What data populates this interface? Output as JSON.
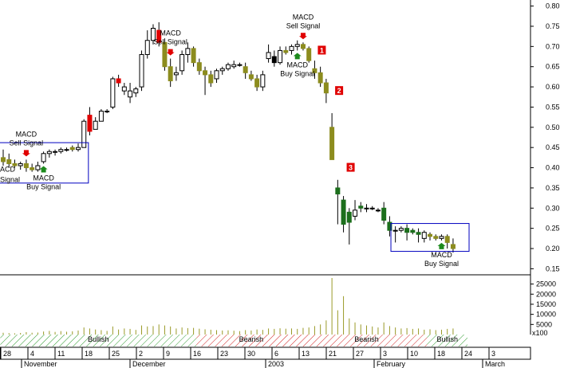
{
  "chart_data": {
    "type": "candlestick",
    "price_axis": {
      "range": [
        0.135,
        0.815
      ],
      "ticks": [
        "0.80",
        "0.75",
        "0.70",
        "0.65",
        "0.60",
        "0.55",
        "0.50",
        "0.45",
        "0.40",
        "0.35",
        "0.30",
        "0.25",
        "0.20",
        "0.15"
      ]
    },
    "volume_axis": {
      "range": [
        0,
        28000
      ],
      "ticks": [
        "25000",
        "20000",
        "15000",
        "10000",
        "5000"
      ],
      "extra_label": "x100"
    },
    "date_ticks": [
      "28",
      "4",
      "11",
      "18",
      "25",
      "2",
      "9",
      "16",
      "23",
      "30",
      "6",
      "13",
      "21",
      "27",
      "3",
      "10",
      "18",
      "24",
      "3"
    ],
    "month_labels": [
      "November",
      "December",
      "2003",
      "February",
      "March"
    ],
    "candles": [
      {
        "o": 0.425,
        "h": 0.445,
        "l": 0.405,
        "c": 0.415,
        "v": 900
      },
      {
        "o": 0.42,
        "h": 0.435,
        "l": 0.4,
        "c": 0.41,
        "v": 700
      },
      {
        "o": 0.41,
        "h": 0.42,
        "l": 0.4,
        "c": 0.405,
        "v": 600
      },
      {
        "o": 0.405,
        "h": 0.415,
        "l": 0.395,
        "c": 0.41,
        "v": 800
      },
      {
        "o": 0.41,
        "h": 0.42,
        "l": 0.39,
        "c": 0.4,
        "v": 1200
      },
      {
        "o": 0.4,
        "h": 0.41,
        "l": 0.39,
        "c": 0.395,
        "v": 900
      },
      {
        "o": 0.395,
        "h": 0.415,
        "l": 0.39,
        "c": 0.405,
        "v": 1000
      },
      {
        "o": 0.415,
        "h": 0.44,
        "l": 0.41,
        "c": 0.435,
        "v": 1500
      },
      {
        "o": 0.435,
        "h": 0.445,
        "l": 0.425,
        "c": 0.44,
        "v": 1800
      },
      {
        "o": 0.44,
        "h": 0.445,
        "l": 0.43,
        "c": 0.44,
        "v": 1300
      },
      {
        "o": 0.44,
        "h": 0.45,
        "l": 0.435,
        "c": 0.445,
        "v": 1700
      },
      {
        "o": 0.445,
        "h": 0.45,
        "l": 0.44,
        "c": 0.445,
        "v": 1400
      },
      {
        "o": 0.45,
        "h": 0.455,
        "l": 0.44,
        "c": 0.445,
        "v": 1600
      },
      {
        "o": 0.445,
        "h": 0.46,
        "l": 0.44,
        "c": 0.45,
        "v": 2000
      },
      {
        "o": 0.45,
        "h": 0.52,
        "l": 0.45,
        "c": 0.515,
        "v": 3500
      },
      {
        "o": 0.53,
        "h": 0.55,
        "l": 0.48,
        "c": 0.49,
        "v": 3000
      },
      {
        "o": 0.495,
        "h": 0.525,
        "l": 0.495,
        "c": 0.515,
        "v": 2500
      },
      {
        "o": 0.515,
        "h": 0.545,
        "l": 0.515,
        "c": 0.54,
        "v": 2200
      },
      {
        "o": 0.54,
        "h": 0.545,
        "l": 0.535,
        "c": 0.54,
        "v": 1800
      },
      {
        "o": 0.55,
        "h": 0.625,
        "l": 0.545,
        "c": 0.62,
        "v": 4000
      },
      {
        "o": 0.62,
        "h": 0.63,
        "l": 0.6,
        "c": 0.61,
        "v": 2500
      },
      {
        "o": 0.59,
        "h": 0.61,
        "l": 0.58,
        "c": 0.6,
        "v": 3000
      },
      {
        "o": 0.575,
        "h": 0.61,
        "l": 0.56,
        "c": 0.59,
        "v": 2800
      },
      {
        "o": 0.585,
        "h": 0.6,
        "l": 0.575,
        "c": 0.595,
        "v": 2300
      },
      {
        "o": 0.6,
        "h": 0.69,
        "l": 0.59,
        "c": 0.68,
        "v": 4500
      },
      {
        "o": 0.68,
        "h": 0.74,
        "l": 0.67,
        "c": 0.715,
        "v": 4000
      },
      {
        "o": 0.715,
        "h": 0.755,
        "l": 0.705,
        "c": 0.745,
        "v": 4200
      },
      {
        "o": 0.74,
        "h": 0.76,
        "l": 0.7,
        "c": 0.71,
        "v": 5000
      },
      {
        "o": 0.71,
        "h": 0.72,
        "l": 0.64,
        "c": 0.65,
        "v": 4500
      },
      {
        "o": 0.65,
        "h": 0.67,
        "l": 0.6,
        "c": 0.615,
        "v": 4000
      },
      {
        "o": 0.63,
        "h": 0.65,
        "l": 0.615,
        "c": 0.635,
        "v": 3000
      },
      {
        "o": 0.64,
        "h": 0.69,
        "l": 0.63,
        "c": 0.68,
        "v": 3500
      },
      {
        "o": 0.68,
        "h": 0.71,
        "l": 0.66,
        "c": 0.695,
        "v": 3200
      },
      {
        "o": 0.695,
        "h": 0.7,
        "l": 0.65,
        "c": 0.66,
        "v": 3300
      },
      {
        "o": 0.66,
        "h": 0.67,
        "l": 0.63,
        "c": 0.64,
        "v": 2900
      },
      {
        "o": 0.64,
        "h": 0.65,
        "l": 0.58,
        "c": 0.63,
        "v": 2600
      },
      {
        "o": 0.63,
        "h": 0.64,
        "l": 0.6,
        "c": 0.61,
        "v": 2400
      },
      {
        "o": 0.62,
        "h": 0.645,
        "l": 0.61,
        "c": 0.64,
        "v": 2200
      },
      {
        "o": 0.64,
        "h": 0.65,
        "l": 0.63,
        "c": 0.645,
        "v": 2000
      },
      {
        "o": 0.645,
        "h": 0.66,
        "l": 0.64,
        "c": 0.655,
        "v": 2100
      },
      {
        "o": 0.65,
        "h": 0.665,
        "l": 0.645,
        "c": 0.655,
        "v": 1900
      },
      {
        "o": 0.655,
        "h": 0.66,
        "l": 0.65,
        "c": 0.655,
        "v": 1700
      },
      {
        "o": 0.65,
        "h": 0.66,
        "l": 0.62,
        "c": 0.635,
        "v": 2200
      },
      {
        "o": 0.63,
        "h": 0.64,
        "l": 0.615,
        "c": 0.62,
        "v": 2000
      },
      {
        "o": 0.62,
        "h": 0.63,
        "l": 0.59,
        "c": 0.6,
        "v": 2500
      },
      {
        "o": 0.6,
        "h": 0.64,
        "l": 0.59,
        "c": 0.63,
        "v": 2300
      },
      {
        "o": 0.67,
        "h": 0.705,
        "l": 0.66,
        "c": 0.685,
        "v": 3000
      },
      {
        "o": 0.675,
        "h": 0.69,
        "l": 0.65,
        "c": 0.66,
        "v": 2800
      },
      {
        "o": 0.66,
        "h": 0.7,
        "l": 0.655,
        "c": 0.69,
        "v": 3100
      },
      {
        "o": 0.69,
        "h": 0.7,
        "l": 0.68,
        "c": 0.685,
        "v": 2900
      },
      {
        "o": 0.69,
        "h": 0.705,
        "l": 0.68,
        "c": 0.7,
        "v": 3000
      },
      {
        "o": 0.7,
        "h": 0.715,
        "l": 0.69,
        "c": 0.705,
        "v": 2800
      },
      {
        "o": 0.705,
        "h": 0.71,
        "l": 0.69,
        "c": 0.695,
        "v": 3300
      },
      {
        "o": 0.695,
        "h": 0.7,
        "l": 0.66,
        "c": 0.665,
        "v": 3500
      },
      {
        "o": 0.645,
        "h": 0.665,
        "l": 0.62,
        "c": 0.635,
        "v": 4200
      },
      {
        "o": 0.635,
        "h": 0.65,
        "l": 0.6,
        "c": 0.61,
        "v": 5000
      },
      {
        "o": 0.61,
        "h": 0.62,
        "l": 0.56,
        "c": 0.585,
        "v": 7000
      },
      {
        "o": 0.5,
        "h": 0.535,
        "l": 0.42,
        "c": 0.42,
        "v": 28000
      },
      {
        "o": 0.35,
        "h": 0.37,
        "l": 0.26,
        "c": 0.335,
        "v": 12000
      },
      {
        "o": 0.32,
        "h": 0.33,
        "l": 0.24,
        "c": 0.26,
        "v": 19000
      },
      {
        "o": 0.29,
        "h": 0.3,
        "l": 0.21,
        "c": 0.265,
        "v": 8000
      },
      {
        "o": 0.28,
        "h": 0.32,
        "l": 0.27,
        "c": 0.295,
        "v": 6000
      },
      {
        "o": 0.305,
        "h": 0.315,
        "l": 0.29,
        "c": 0.3,
        "v": 5000
      },
      {
        "o": 0.3,
        "h": 0.31,
        "l": 0.29,
        "c": 0.3,
        "v": 4500
      },
      {
        "o": 0.3,
        "h": 0.305,
        "l": 0.295,
        "c": 0.3,
        "v": 4000
      },
      {
        "o": 0.295,
        "h": 0.3,
        "l": 0.29,
        "c": 0.295,
        "v": 3500
      },
      {
        "o": 0.3,
        "h": 0.315,
        "l": 0.26,
        "c": 0.27,
        "v": 6000
      },
      {
        "o": 0.265,
        "h": 0.28,
        "l": 0.23,
        "c": 0.245,
        "v": 4200
      },
      {
        "o": 0.245,
        "h": 0.255,
        "l": 0.215,
        "c": 0.245,
        "v": 3500
      },
      {
        "o": 0.245,
        "h": 0.255,
        "l": 0.24,
        "c": 0.25,
        "v": 3000
      },
      {
        "o": 0.25,
        "h": 0.26,
        "l": 0.22,
        "c": 0.24,
        "v": 3200
      },
      {
        "o": 0.245,
        "h": 0.25,
        "l": 0.235,
        "c": 0.24,
        "v": 2800
      },
      {
        "o": 0.24,
        "h": 0.25,
        "l": 0.215,
        "c": 0.235,
        "v": 3000
      },
      {
        "o": 0.225,
        "h": 0.245,
        "l": 0.215,
        "c": 0.24,
        "v": 2400
      },
      {
        "o": 0.235,
        "h": 0.24,
        "l": 0.22,
        "c": 0.23,
        "v": 2600
      },
      {
        "o": 0.23,
        "h": 0.235,
        "l": 0.22,
        "c": 0.225,
        "v": 2200
      },
      {
        "o": 0.225,
        "h": 0.235,
        "l": 0.22,
        "c": 0.23,
        "v": 2400
      },
      {
        "o": 0.23,
        "h": 0.235,
        "l": 0.2,
        "c": 0.215,
        "v": 2800
      },
      {
        "o": 0.21,
        "h": 0.225,
        "l": 0.19,
        "c": 0.2,
        "v": 3000
      }
    ],
    "annotations": [
      {
        "lines": [
          "MACD",
          "Sell Signal"
        ],
        "candle": 4,
        "place": "above",
        "arrow": "down"
      },
      {
        "lines": [
          "MACD",
          "Sell Signal"
        ],
        "candle": 29,
        "place": "above",
        "arrow": "down"
      },
      {
        "lines": [
          "MACD",
          "Sell Signal"
        ],
        "candle": 52,
        "place": "above",
        "arrow": "down"
      },
      {
        "lines": [
          "MACD",
          "Buy Signal"
        ],
        "candle": 7,
        "place": "below",
        "arrow": "up"
      },
      {
        "lines": [
          "MACD",
          "Buy Signal"
        ],
        "candle": 51,
        "place": "below",
        "arrow": "up"
      },
      {
        "lines": [
          "MACD",
          "Buy Signal"
        ],
        "candle": 76,
        "place": "below",
        "arrow": "up"
      }
    ],
    "cut_labels": [
      {
        "text": "ACD",
        "y": 0.39
      },
      {
        "text": "Signal",
        "y": 0.365
      }
    ],
    "numbered_markers": [
      {
        "label": "1",
        "candle": 54,
        "y": 0.69
      },
      {
        "label": "2",
        "candle": 57,
        "y": 0.59
      },
      {
        "label": "3",
        "candle": 59,
        "y": 0.4
      }
    ],
    "boxes": [
      {
        "from_candle": 0,
        "to_candle": 14,
        "y_top": 0.462,
        "y_bottom": 0.362
      },
      {
        "from_candle": 68,
        "to_candle": 80,
        "y_top": 0.262,
        "y_bottom": 0.193
      }
    ],
    "trend_bands": [
      {
        "label": "Bullish",
        "from_candle": 0,
        "to_candle": 33,
        "sentiment": "bullish"
      },
      {
        "label": "Bearish",
        "from_candle": 34,
        "to_candle": 52,
        "sentiment": "bearish"
      },
      {
        "label": "Bearish",
        "from_candle": 53,
        "to_candle": 73,
        "sentiment": "bearish"
      },
      {
        "label": "Bullish",
        "from_candle": 74,
        "to_candle": 80,
        "sentiment": "bullish"
      }
    ],
    "colors": {
      "up": "#ffffff",
      "down_red": "#e00000",
      "down_olive": "#8c8c1e",
      "down_green": "#1c6f1c",
      "down_black": "#000000",
      "box": "#0000c0",
      "bullish_hatch": "#2c9a2c",
      "bearish_hatch": "#d02020",
      "volume": "#9a9a28",
      "signal_up": "#1c8a1c",
      "signal_down": "#e00000"
    }
  }
}
